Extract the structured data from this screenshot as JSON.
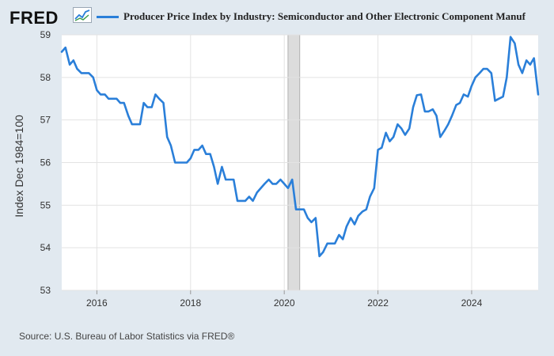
{
  "header": {
    "logo_text": "FRED",
    "logo_icon": "line-graph-icon",
    "legend_color": "#2a7fd9"
  },
  "source": "Source: U.S. Bureau of Labor Statistics via FRED®",
  "chart_data": {
    "type": "line",
    "title": "Producer Price Index by Industry: Semiconductor and Other Electronic Component Manuf",
    "xlabel": "",
    "ylabel": "Index Dec 1984=100",
    "xlim": [
      2015.25,
      2025.42
    ],
    "ylim": [
      53,
      59
    ],
    "x_ticks": [
      2016,
      2018,
      2020,
      2022,
      2024
    ],
    "y_ticks": [
      53,
      54,
      55,
      56,
      57,
      58,
      59
    ],
    "grid": true,
    "recession_shading": [
      [
        2020.08,
        2020.33
      ]
    ],
    "series": [
      {
        "name": "Producer Price Index by Industry: Semiconductor and Other Electronic Component Manuf",
        "color": "#2a7fd9",
        "x": [
          2015.25,
          2015.33,
          2015.42,
          2015.5,
          2015.58,
          2015.67,
          2015.75,
          2015.83,
          2015.92,
          2016.0,
          2016.08,
          2016.17,
          2016.25,
          2016.33,
          2016.42,
          2016.5,
          2016.58,
          2016.67,
          2016.75,
          2016.83,
          2016.92,
          2017.0,
          2017.08,
          2017.17,
          2017.25,
          2017.33,
          2017.42,
          2017.5,
          2017.58,
          2017.67,
          2017.75,
          2017.83,
          2017.92,
          2018.0,
          2018.08,
          2018.17,
          2018.25,
          2018.33,
          2018.42,
          2018.5,
          2018.58,
          2018.67,
          2018.75,
          2018.83,
          2018.92,
          2019.0,
          2019.08,
          2019.17,
          2019.25,
          2019.33,
          2019.42,
          2019.5,
          2019.58,
          2019.67,
          2019.75,
          2019.83,
          2019.92,
          2020.0,
          2020.08,
          2020.17,
          2020.25,
          2020.33,
          2020.42,
          2020.5,
          2020.58,
          2020.67,
          2020.75,
          2020.83,
          2020.92,
          2021.0,
          2021.08,
          2021.17,
          2021.25,
          2021.33,
          2021.42,
          2021.5,
          2021.58,
          2021.67,
          2021.75,
          2021.83,
          2021.92,
          2022.0,
          2022.08,
          2022.17,
          2022.25,
          2022.33,
          2022.42,
          2022.5,
          2022.58,
          2022.67,
          2022.75,
          2022.83,
          2022.92,
          2023.0,
          2023.08,
          2023.17,
          2023.25,
          2023.33,
          2023.42,
          2023.5,
          2023.58,
          2023.67,
          2023.75,
          2023.83,
          2023.92,
          2024.0,
          2024.08,
          2024.17,
          2024.25,
          2024.33,
          2024.42,
          2024.5,
          2024.58,
          2024.67,
          2024.75,
          2024.83,
          2024.92,
          2025.0,
          2025.08,
          2025.17,
          2025.25,
          2025.33,
          2025.42
        ],
        "values": [
          58.6,
          58.7,
          58.3,
          58.4,
          58.2,
          58.1,
          58.1,
          58.1,
          58.0,
          57.7,
          57.6,
          57.6,
          57.5,
          57.5,
          57.5,
          57.4,
          57.4,
          57.1,
          56.9,
          56.9,
          56.9,
          57.4,
          57.3,
          57.3,
          57.6,
          57.5,
          57.4,
          56.6,
          56.4,
          56.0,
          56.0,
          56.0,
          56.0,
          56.1,
          56.3,
          56.3,
          56.4,
          56.2,
          56.2,
          55.9,
          55.5,
          55.9,
          55.6,
          55.6,
          55.6,
          55.1,
          55.1,
          55.1,
          55.2,
          55.1,
          55.3,
          55.4,
          55.5,
          55.6,
          55.5,
          55.5,
          55.6,
          55.5,
          55.4,
          55.6,
          54.9,
          54.9,
          54.9,
          54.7,
          54.6,
          54.7,
          53.8,
          53.9,
          54.1,
          54.1,
          54.1,
          54.3,
          54.2,
          54.5,
          54.7,
          54.55,
          54.75,
          54.85,
          54.9,
          55.2,
          55.4,
          56.3,
          56.35,
          56.7,
          56.5,
          56.6,
          56.9,
          56.8,
          56.65,
          56.8,
          57.3,
          57.58,
          57.6,
          57.2,
          57.2,
          57.25,
          57.1,
          56.6,
          56.75,
          56.9,
          57.1,
          57.35,
          57.4,
          57.6,
          57.55,
          57.8,
          58.0,
          58.1,
          58.2,
          58.2,
          58.1,
          57.45,
          57.5,
          57.55,
          58.0,
          58.95,
          58.8,
          58.3,
          58.1,
          58.4,
          58.3,
          58.45,
          57.6
        ]
      }
    ]
  }
}
